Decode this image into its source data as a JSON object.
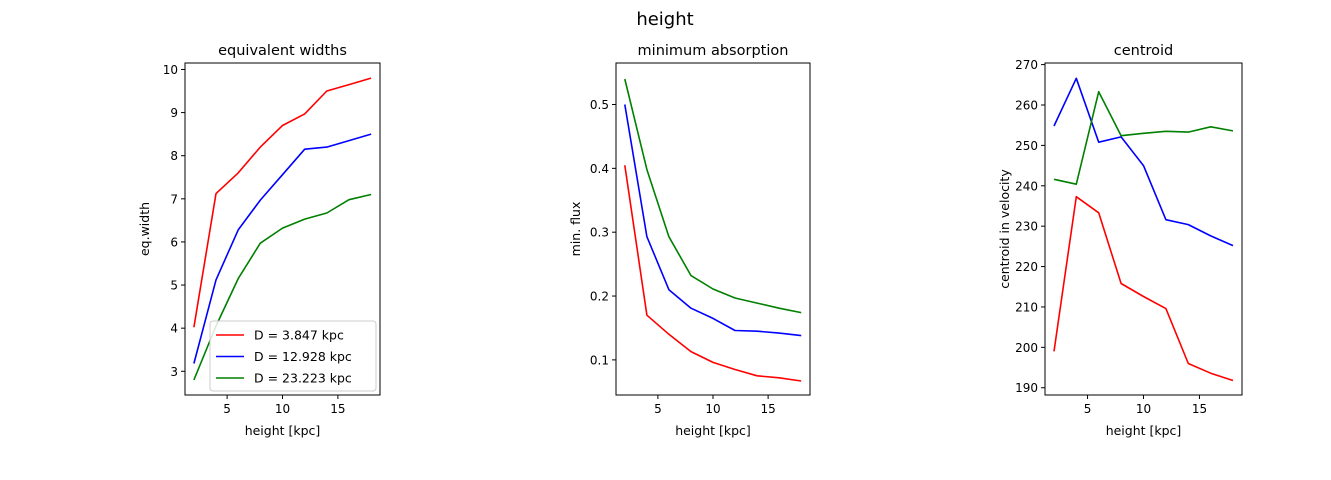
{
  "suptitle": "height",
  "chart_data": [
    {
      "type": "line",
      "title": "equivalent widths",
      "xlabel": "height [kpc]",
      "ylabel": "eq.width",
      "xlim": [
        1.2,
        18.8
      ],
      "ylim": [
        2.45,
        10.15
      ],
      "xticks": [
        5,
        10,
        15
      ],
      "yticks": [
        3,
        4,
        5,
        6,
        7,
        8,
        9,
        10
      ],
      "x": [
        2,
        4,
        6,
        8,
        10,
        12,
        14,
        16,
        18
      ],
      "series": [
        {
          "name": "D = 3.847 kpc",
          "color": "#ff0000",
          "values": [
            4.02,
            7.12,
            7.6,
            8.2,
            8.7,
            8.97,
            9.5,
            9.65,
            9.8
          ]
        },
        {
          "name": "D = 12.928 kpc",
          "color": "#0000ff",
          "values": [
            3.18,
            5.12,
            6.28,
            6.97,
            7.56,
            8.15,
            8.2,
            8.35,
            8.5
          ]
        },
        {
          "name": "D = 23.223 kpc",
          "color": "#008000",
          "values": [
            2.8,
            4.05,
            5.15,
            5.97,
            6.32,
            6.53,
            6.67,
            6.98,
            7.1
          ]
        }
      ],
      "legend": "lower-right"
    },
    {
      "type": "line",
      "title": "minimum absorption",
      "xlabel": "height [kpc]",
      "ylabel": "min. flux",
      "xlim": [
        1.2,
        18.8
      ],
      "ylim": [
        0.045,
        0.565
      ],
      "xticks": [
        5,
        10,
        15
      ],
      "yticks": [
        0.1,
        0.2,
        0.3,
        0.4,
        0.5
      ],
      "x": [
        2,
        4,
        6,
        8,
        10,
        12,
        14,
        16,
        18
      ],
      "series": [
        {
          "name": "D = 3.847 kpc",
          "color": "#ff0000",
          "values": [
            0.405,
            0.17,
            0.14,
            0.113,
            0.096,
            0.085,
            0.075,
            0.072,
            0.067
          ]
        },
        {
          "name": "D = 12.928 kpc",
          "color": "#0000ff",
          "values": [
            0.5,
            0.293,
            0.21,
            0.181,
            0.165,
            0.146,
            0.145,
            0.142,
            0.138
          ]
        },
        {
          "name": "D = 23.223 kpc",
          "color": "#008000",
          "values": [
            0.54,
            0.398,
            0.293,
            0.232,
            0.211,
            0.197,
            0.189,
            0.181,
            0.174
          ]
        }
      ]
    },
    {
      "type": "line",
      "title": "centroid",
      "xlabel": "height [kpc]",
      "ylabel": "centroid in velocity",
      "xlim": [
        1.2,
        18.8
      ],
      "ylim": [
        188.2,
        270.4
      ],
      "xticks": [
        5,
        10,
        15
      ],
      "yticks": [
        190,
        200,
        210,
        220,
        230,
        240,
        250,
        260,
        270
      ],
      "x": [
        2,
        4,
        6,
        8,
        10,
        12,
        14,
        16,
        18
      ],
      "series": [
        {
          "name": "D = 3.847 kpc",
          "color": "#ff0000",
          "values": [
            199,
            237.3,
            233.3,
            215.8,
            212.6,
            209.6,
            196,
            193.6,
            191.8
          ]
        },
        {
          "name": "D = 12.928 kpc",
          "color": "#0000ff",
          "values": [
            254.8,
            266.6,
            250.8,
            252.1,
            245,
            231.6,
            230.4,
            227.6,
            225.2
          ]
        },
        {
          "name": "D = 23.223 kpc",
          "color": "#008000",
          "values": [
            241.6,
            240.4,
            263.3,
            252.4,
            253,
            253.5,
            253.3,
            254.6,
            253.6
          ]
        }
      ]
    }
  ]
}
